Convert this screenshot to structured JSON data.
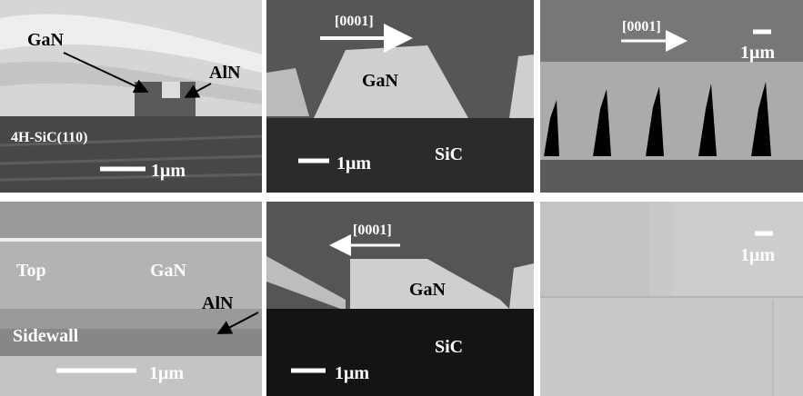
{
  "panels": [
    {
      "labels": [
        "GaN",
        "AlN",
        "4H-SiC(110)",
        "1μm"
      ]
    },
    {
      "labels": [
        "[0001]",
        "GaN",
        "SiC",
        "1μm"
      ]
    },
    {
      "labels": [
        "[0001]",
        "1μm"
      ]
    },
    {
      "labels": [
        "Top",
        "GaN",
        "AlN",
        "Sidewall",
        "1μm"
      ]
    },
    {
      "labels": [
        "[0001]",
        "GaN",
        "SiC",
        "1μm"
      ]
    },
    {
      "labels": [
        "1μm"
      ]
    }
  ]
}
